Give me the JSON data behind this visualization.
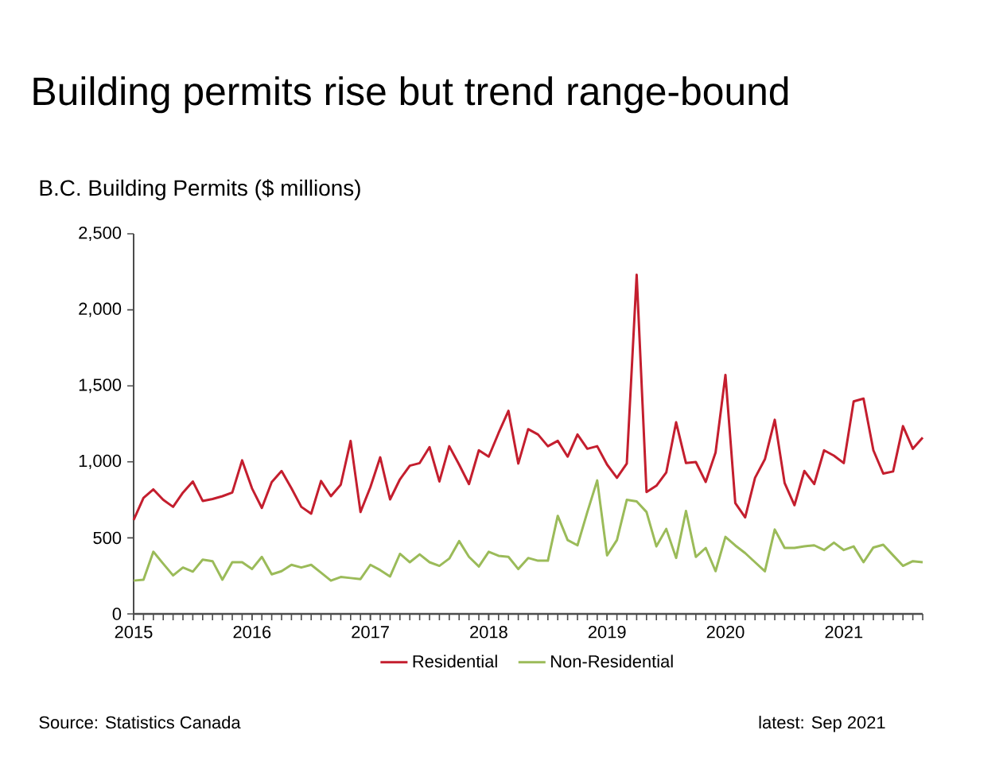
{
  "chart_data": {
    "type": "line",
    "title": "Building permits rise but trend range-bound",
    "subtitle": "B.C. Building Permits ($ millions)",
    "annotations": [
      "Source: Statistics Canada",
      "latest: Sep 2021"
    ],
    "x": [
      "2015-01",
      "2015-02",
      "2015-03",
      "2015-04",
      "2015-05",
      "2015-06",
      "2015-07",
      "2015-08",
      "2015-09",
      "2015-10",
      "2015-11",
      "2015-12",
      "2016-01",
      "2016-02",
      "2016-03",
      "2016-04",
      "2016-05",
      "2016-06",
      "2016-07",
      "2016-08",
      "2016-09",
      "2016-10",
      "2016-11",
      "2016-12",
      "2017-01",
      "2017-02",
      "2017-03",
      "2017-04",
      "2017-05",
      "2017-06",
      "2017-07",
      "2017-08",
      "2017-09",
      "2017-10",
      "2017-11",
      "2017-12",
      "2018-01",
      "2018-02",
      "2018-03",
      "2018-04",
      "2018-05",
      "2018-06",
      "2018-07",
      "2018-08",
      "2018-09",
      "2018-10",
      "2018-11",
      "2018-12",
      "2019-01",
      "2019-02",
      "2019-03",
      "2019-04",
      "2019-05",
      "2019-06",
      "2019-07",
      "2019-08",
      "2019-09",
      "2019-10",
      "2019-11",
      "2019-12",
      "2020-01",
      "2020-02",
      "2020-03",
      "2020-04",
      "2020-05",
      "2020-06",
      "2020-07",
      "2020-08",
      "2020-09",
      "2020-10",
      "2020-11",
      "2020-12",
      "2021-01",
      "2021-02",
      "2021-03",
      "2021-04",
      "2021-05",
      "2021-06",
      "2021-07",
      "2021-08",
      "2021-09"
    ],
    "series": [
      {
        "name": "Residential",
        "color": "#c41e2e",
        "values": [
          618,
          763,
          819,
          750,
          704,
          798,
          871,
          743,
          756,
          774,
          798,
          1010,
          826,
          697,
          867,
          940,
          826,
          704,
          659,
          874,
          774,
          850,
          1138,
          670,
          833,
          1030,
          753,
          885,
          975,
          992,
          1097,
          871,
          1103,
          982,
          854,
          1076,
          1034,
          1190,
          1336,
          989,
          1215,
          1180,
          1103,
          1138,
          1034,
          1180,
          1086,
          1103,
          982,
          895,
          989,
          2230,
          802,
          843,
          930,
          1260,
          992,
          999,
          868,
          1062,
          1572,
          729,
          635,
          895,
          1017,
          1277,
          861,
          715,
          940,
          854,
          1076,
          1041,
          992,
          1398,
          1416,
          1076,
          923,
          937,
          1235,
          1086,
          1160
        ]
      },
      {
        "name": "Non-Residential",
        "color": "#9bbb59",
        "values": [
          219,
          225,
          409,
          330,
          253,
          305,
          278,
          357,
          347,
          225,
          340,
          340,
          295,
          375,
          260,
          281,
          323,
          305,
          323,
          271,
          219,
          243,
          236,
          229,
          323,
          288,
          246,
          395,
          340,
          392,
          340,
          316,
          364,
          479,
          375,
          312,
          409,
          382,
          375,
          295,
          368,
          350,
          350,
          645,
          486,
          451,
          670,
          878,
          385,
          486,
          750,
          740,
          670,
          444,
          559,
          368,
          677,
          375,
          434,
          281,
          507,
          450,
          400,
          340,
          280,
          555,
          434,
          434,
          444,
          451,
          420,
          469,
          420,
          444,
          340,
          437,
          455,
          385,
          316,
          347,
          340
        ]
      }
    ],
    "xlim": [
      "2015-01",
      "2021-09"
    ],
    "xticks": [
      "2015",
      "2016",
      "2017",
      "2018",
      "2019",
      "2020",
      "2021"
    ],
    "ylim": [
      0,
      2500
    ],
    "yticks": [
      0,
      {
        "value": 500,
        "label": "500"
      },
      {
        "value": 1000,
        "label": "1,000"
      },
      {
        "value": 1500,
        "label": "1,500"
      },
      {
        "value": 2000,
        "label": "2,000"
      },
      {
        "value": 2500,
        "label": "2,500"
      }
    ],
    "grid": false,
    "legend": "bottom",
    "marker": "none",
    "line_style": "solid"
  }
}
